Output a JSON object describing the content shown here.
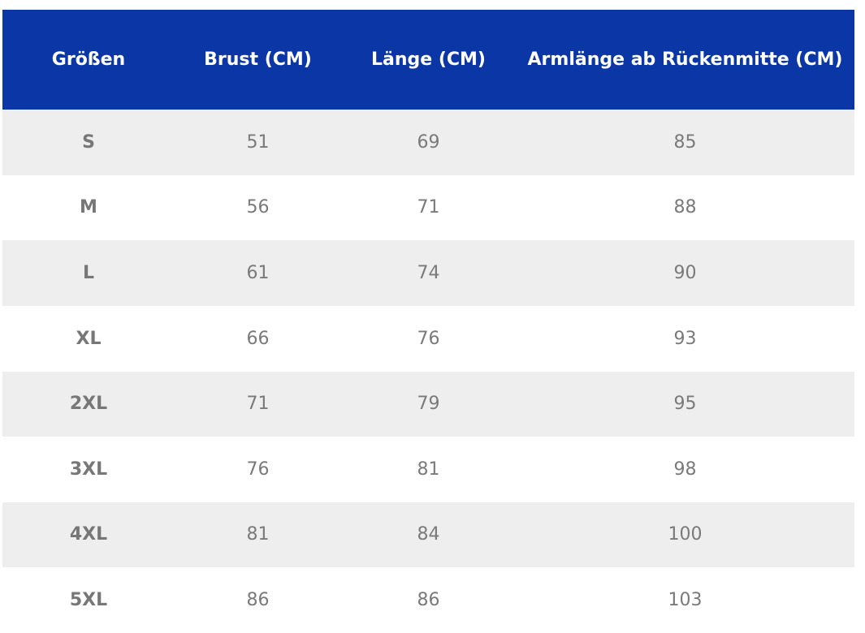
{
  "table": {
    "header": [
      "Größen",
      "Brust (CM)",
      "Länge (CM)",
      "Armlänge ab Rückenmitte (CM)"
    ],
    "rows": [
      [
        "S",
        51,
        69,
        85
      ],
      [
        "M",
        56,
        71,
        88
      ],
      [
        "L",
        61,
        74,
        90
      ],
      [
        "XL",
        66,
        76,
        93
      ],
      [
        "2XL",
        71,
        79,
        95
      ],
      [
        "3XL",
        76,
        81,
        98
      ],
      [
        "4XL",
        81,
        84,
        100
      ],
      [
        "5XL",
        86,
        86,
        103
      ]
    ]
  }
}
